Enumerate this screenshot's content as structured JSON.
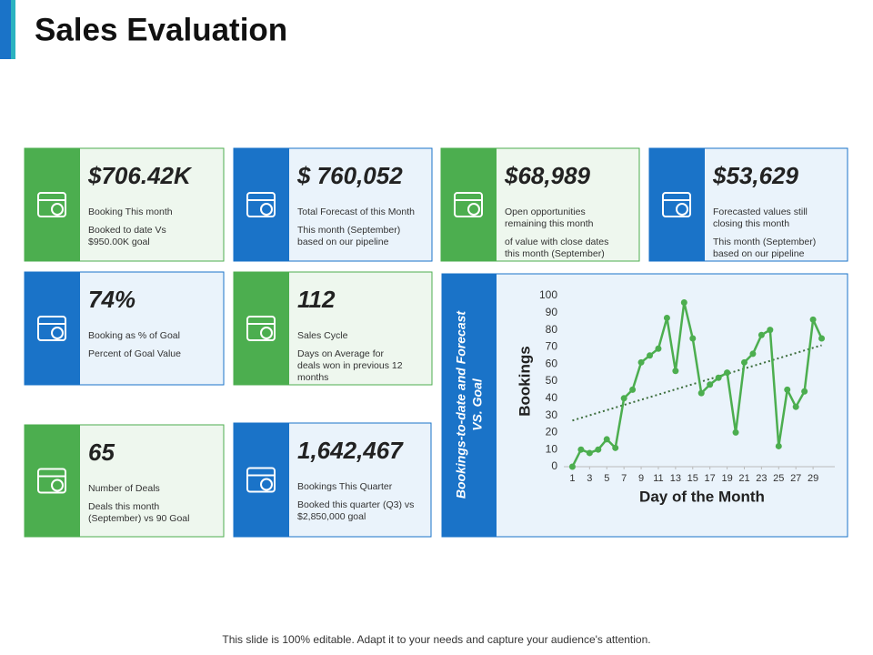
{
  "header": {
    "title": "Sales Evaluation"
  },
  "cards": [
    {
      "value": "$706.42K",
      "label": [
        "Booking This month"
      ],
      "note": [
        "Booked to date Vs",
        "$950.00K goal"
      ]
    },
    {
      "value": "$ 760,052",
      "label": [
        "Total Forecast of this Month"
      ],
      "note": [
        "This month (September)",
        "based on our pipeline"
      ]
    },
    {
      "value": "$68,989",
      "label": [
        "Open opportunities",
        "remaining this month"
      ],
      "note": [
        "of value with close dates",
        "this month (September)"
      ]
    },
    {
      "value": "$53,629",
      "label": [
        "Forecasted values still",
        "closing this month"
      ],
      "note": [
        "This month (September)",
        "based on our pipeline"
      ]
    },
    {
      "value": "74%",
      "label": [
        "Booking as % of Goal"
      ],
      "note": [
        "Percent of Goal Value"
      ]
    },
    {
      "value": "112",
      "label": [
        "Sales Cycle"
      ],
      "note": [
        "Days on Average for",
        "deals won in previous 12",
        "months"
      ]
    },
    {
      "value": "65",
      "label": [
        "Number of Deals"
      ],
      "note": [
        "Deals this month",
        "(September) vs 90 Goal"
      ]
    },
    {
      "value": "1,642,467",
      "label": [
        "Bookings This Quarter"
      ],
      "note": [
        "Booked this quarter (Q3) vs",
        "$2,850,000 goal"
      ]
    }
  ],
  "chart_data": {
    "type": "line",
    "panel_title": [
      "Bookings-to-date and Forecast",
      "VS. Goal"
    ],
    "x_label": "Day of the Month",
    "y_label": "Bookings",
    "x": [
      1,
      2,
      3,
      4,
      5,
      6,
      7,
      8,
      9,
      10,
      11,
      12,
      13,
      14,
      15,
      16,
      17,
      18,
      19,
      20,
      21,
      22,
      23,
      24,
      25,
      26,
      27,
      28,
      29,
      30
    ],
    "series": [
      {
        "name": "Bookings",
        "color": "#4cae4f",
        "values": [
          0,
          10,
          8,
          10,
          16,
          11,
          40,
          45,
          61,
          65,
          69,
          87,
          56,
          96,
          75,
          43,
          48,
          52,
          55,
          20,
          61,
          66,
          77,
          80,
          12,
          45,
          35,
          44,
          86,
          75
        ]
      }
    ],
    "trend": {
      "x": [
        1,
        30
      ],
      "values": [
        27,
        71
      ],
      "color": "#3d6e3d"
    },
    "xlim": [
      0,
      31
    ],
    "ylim": [
      0,
      100
    ],
    "xticks": [
      1,
      3,
      5,
      7,
      9,
      11,
      13,
      15,
      17,
      19,
      21,
      23,
      25,
      27,
      29
    ],
    "yticks": [
      0,
      10,
      20,
      30,
      40,
      50,
      60,
      70,
      80,
      90,
      100
    ],
    "grid": false
  },
  "footer": "This slide is 100% editable. Adapt it to your needs and capture your audience's attention."
}
